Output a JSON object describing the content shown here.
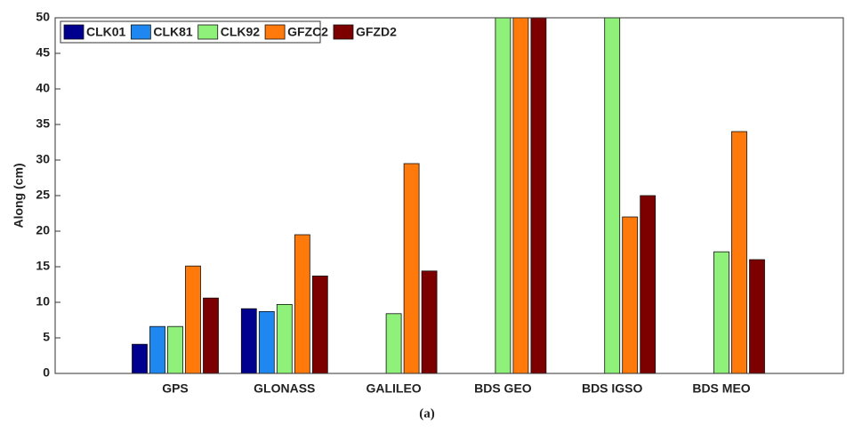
{
  "chart_data": {
    "type": "bar",
    "y_label": "Along (cm)",
    "caption": "(a)",
    "categories": [
      "GPS",
      "GLONASS",
      "GALILEO",
      "BDS GEO",
      "BDS IGSO",
      "BDS MEO"
    ],
    "series": [
      {
        "name": "CLK01",
        "color": "#00008f",
        "values": [
          4.1,
          9.1,
          0,
          0,
          0,
          0
        ]
      },
      {
        "name": "CLK81",
        "color": "#1e88f0",
        "values": [
          6.6,
          8.7,
          0,
          0,
          0,
          0
        ]
      },
      {
        "name": "CLK92",
        "color": "#8ff07a",
        "values": [
          6.6,
          9.7,
          8.4,
          50,
          50,
          17.1
        ]
      },
      {
        "name": "GFZC2",
        "color": "#ff7a0a",
        "values": [
          15.1,
          19.5,
          29.5,
          50,
          22,
          34
        ]
      },
      {
        "name": "GFZD2",
        "color": "#7d0000",
        "values": [
          10.6,
          13.7,
          14.4,
          50,
          25,
          16
        ]
      }
    ],
    "ylim": [
      0,
      50
    ],
    "yticks": [
      0,
      5,
      10,
      15,
      20,
      25,
      30,
      35,
      40,
      45,
      50
    ],
    "legend": "upper left",
    "grid": false
  }
}
